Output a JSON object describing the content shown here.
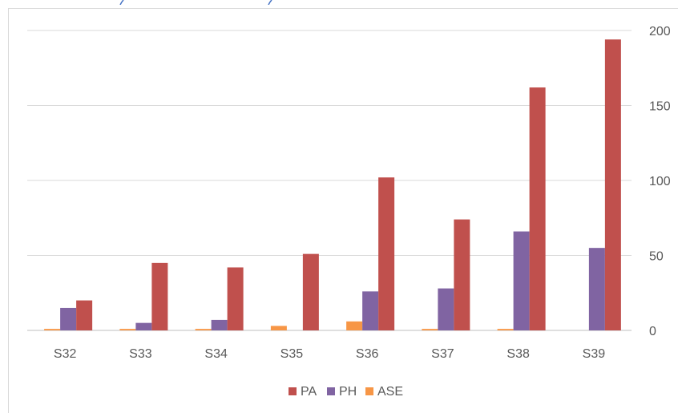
{
  "chart_data": {
    "type": "bar",
    "categories": [
      "S32",
      "S33",
      "S34",
      "S35",
      "S36",
      "S37",
      "S38",
      "S39"
    ],
    "series": [
      {
        "name": "PA",
        "color": "#c0504d",
        "values": [
          20,
          45,
          42,
          51,
          102,
          74,
          162,
          194
        ]
      },
      {
        "name": "PH",
        "color": "#8064a2",
        "values": [
          15,
          5,
          7,
          0,
          26,
          28,
          66,
          55
        ]
      },
      {
        "name": "ASE",
        "color": "#f79646",
        "values": [
          1,
          1,
          1,
          3,
          6,
          1,
          1,
          0
        ]
      }
    ],
    "draw_order": [
      "ASE",
      "PH",
      "PA"
    ],
    "legend_order": [
      "PA",
      "PH",
      "ASE"
    ],
    "yticks": [
      0,
      50,
      100,
      150,
      200
    ],
    "ylim": [
      0,
      200
    ],
    "y_axis_side": "right",
    "grid": true,
    "legend_position": "bottom",
    "title": "",
    "xlabel": "",
    "ylabel": ""
  }
}
